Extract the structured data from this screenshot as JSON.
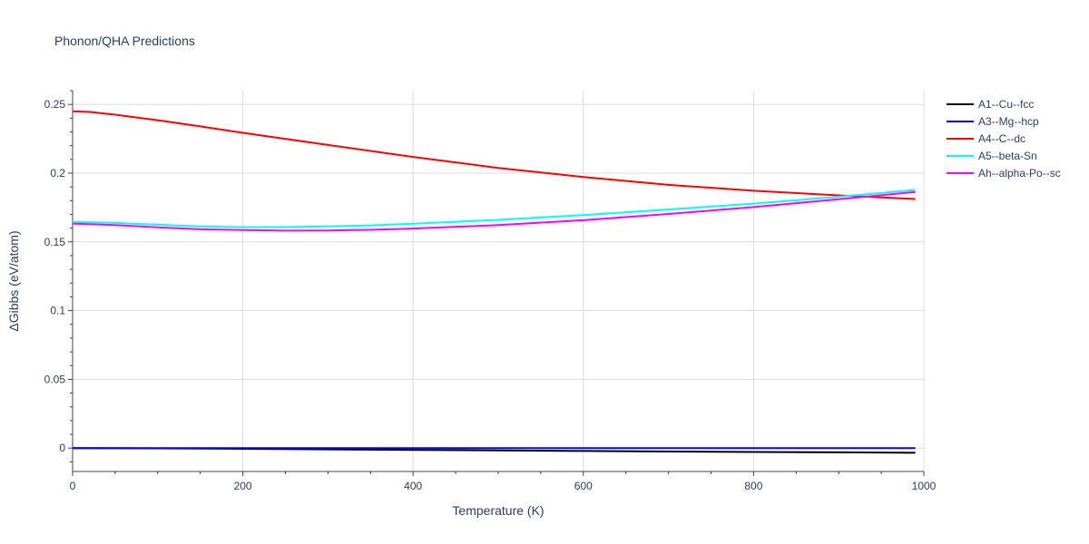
{
  "chart_data": {
    "type": "line",
    "title": "Phonon/QHA Predictions",
    "xlabel": "Temperature (K)",
    "ylabel": "ΔGibbs (eV/atom)",
    "xlim": [
      0,
      1000
    ],
    "ylim": [
      -0.017,
      0.26
    ],
    "xticks": [
      0,
      200,
      400,
      600,
      800,
      1000
    ],
    "yticks": [
      0,
      0.05,
      0.1,
      0.15,
      0.2,
      0.25
    ],
    "xtick_labels": [
      "0",
      "200",
      "400",
      "600",
      "800",
      "1000"
    ],
    "ytick_labels": [
      "0",
      "0.05",
      "0.1",
      "0.15",
      "0.2",
      "0.25"
    ],
    "grid": true,
    "legend_position": "right",
    "series": [
      {
        "name": "A1--Cu--fcc",
        "color": "#000000",
        "x": [
          0,
          100,
          200,
          300,
          400,
          500,
          600,
          700,
          800,
          900,
          990
        ],
        "y": [
          0,
          -0.0002,
          -0.0005,
          -0.0009,
          -0.0013,
          -0.0017,
          -0.0021,
          -0.0025,
          -0.0028,
          -0.0031,
          -0.0034
        ]
      },
      {
        "name": "A3--Mg--hcp",
        "color": "#0000ff",
        "x": [
          0,
          100,
          200,
          300,
          400,
          500,
          600,
          700,
          800,
          900,
          990
        ],
        "y": [
          0,
          0,
          0,
          0,
          0,
          0,
          0,
          0,
          0,
          0,
          0
        ]
      },
      {
        "name": "A4--C--dc",
        "color": "#ff0000",
        "x": [
          0,
          20,
          50,
          100,
          150,
          200,
          300,
          400,
          500,
          600,
          700,
          800,
          900,
          990
        ],
        "y": [
          0.245,
          0.2445,
          0.2425,
          0.2385,
          0.234,
          0.2293,
          0.2205,
          0.2118,
          0.2038,
          0.1972,
          0.1915,
          0.1872,
          0.1838,
          0.1812
        ]
      },
      {
        "name": "A5--beta-Sn",
        "color": "#00ffff",
        "x": [
          0,
          50,
          100,
          150,
          200,
          250,
          300,
          350,
          400,
          500,
          600,
          700,
          800,
          900,
          990
        ],
        "y": [
          0.1645,
          0.1638,
          0.1625,
          0.1612,
          0.1607,
          0.1607,
          0.1612,
          0.162,
          0.1632,
          0.166,
          0.1695,
          0.1735,
          0.1778,
          0.1828,
          0.1878
        ]
      },
      {
        "name": "Ah--alpha-Po--sc",
        "color": "#ff00ff",
        "x": [
          0,
          50,
          100,
          150,
          200,
          250,
          300,
          350,
          400,
          500,
          600,
          700,
          800,
          900,
          990
        ],
        "y": [
          0.1633,
          0.1622,
          0.1606,
          0.1592,
          0.1586,
          0.1582,
          0.1583,
          0.1588,
          0.1597,
          0.1622,
          0.1658,
          0.1703,
          0.1753,
          0.181,
          0.1863
        ]
      }
    ]
  }
}
